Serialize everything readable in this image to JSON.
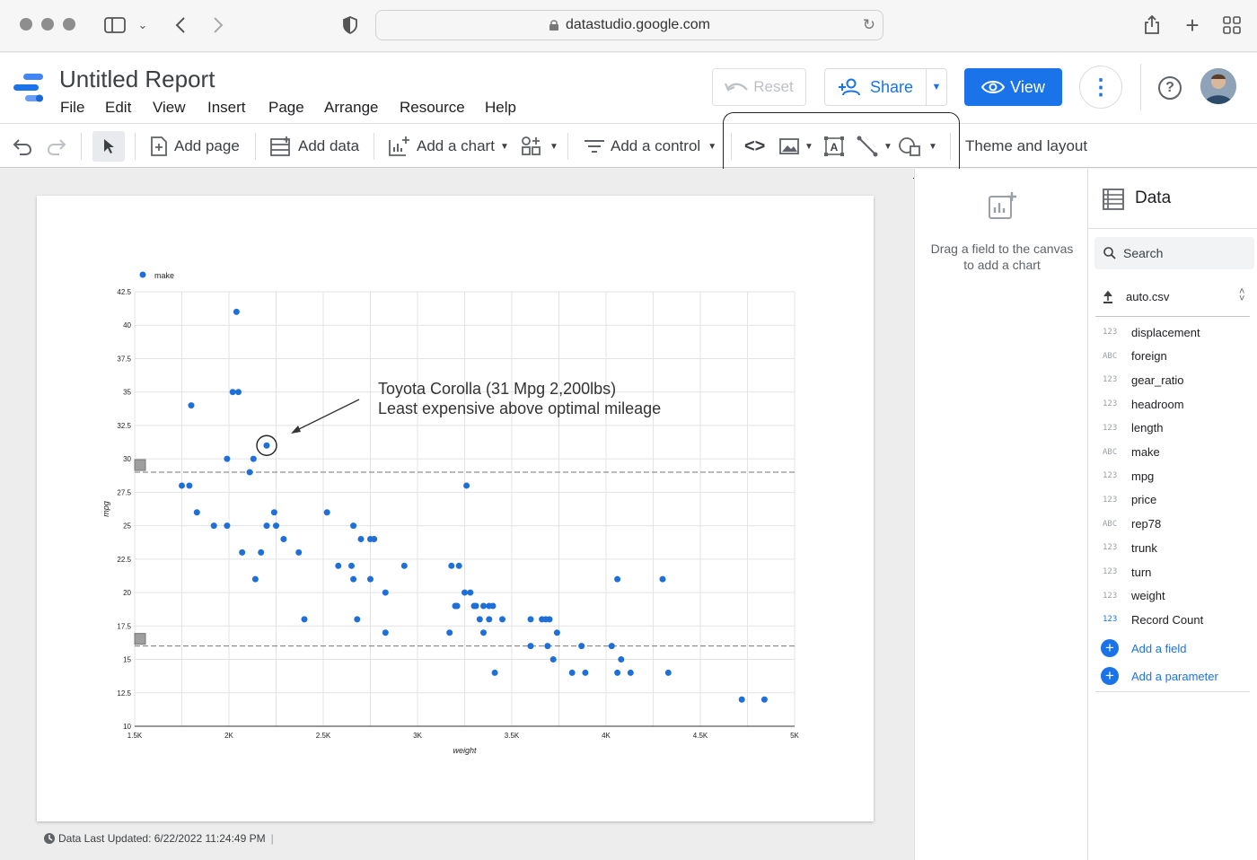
{
  "browser": {
    "url": "datastudio.google.com"
  },
  "header": {
    "title": "Untitled Report",
    "menus": [
      "File",
      "Edit",
      "View",
      "Insert",
      "Page",
      "Arrange",
      "Resource",
      "Help"
    ],
    "reset_label": "Reset",
    "share_label": "Share",
    "view_label": "View"
  },
  "toolbar": {
    "add_page": "Add page",
    "add_data": "Add data",
    "add_chart": "Add a chart",
    "add_control": "Add a control",
    "theme_layout": "Theme and layout"
  },
  "props_panel": {
    "hint": "Drag a field to the canvas to add a chart"
  },
  "data_panel": {
    "title": "Data",
    "search_placeholder": "Search",
    "datasource": "auto.csv",
    "fields": [
      {
        "type": "123",
        "name": "displacement"
      },
      {
        "type": "ABC",
        "name": "foreign"
      },
      {
        "type": "123",
        "name": "gear_ratio"
      },
      {
        "type": "123",
        "name": "headroom"
      },
      {
        "type": "123",
        "name": "length"
      },
      {
        "type": "ABC",
        "name": "make"
      },
      {
        "type": "123",
        "name": "mpg"
      },
      {
        "type": "123",
        "name": "price"
      },
      {
        "type": "ABC",
        "name": "rep78"
      },
      {
        "type": "123",
        "name": "trunk"
      },
      {
        "type": "123",
        "name": "turn"
      },
      {
        "type": "123",
        "name": "weight"
      },
      {
        "type": "123",
        "name": "Record Count"
      }
    ],
    "add_field": "Add a field",
    "add_parameter": "Add a parameter"
  },
  "footer": {
    "last_updated": "Data Last Updated: 6/22/2022 11:24:49 PM"
  },
  "colors": {
    "accent": "#1a73e8",
    "point": "#1f6fd8"
  },
  "chart_data": {
    "type": "scatter",
    "legend": [
      "make"
    ],
    "legend_position": "top-left",
    "xlabel": "weight",
    "ylabel": "mpg",
    "xlim": [
      1500,
      5000
    ],
    "ylim": [
      10,
      42.5
    ],
    "xticks": [
      "1.5K",
      "2K",
      "2.5K",
      "3K",
      "3.5K",
      "4K",
      "4.5K",
      "5K"
    ],
    "yticks": [
      "10",
      "12.5",
      "15",
      "17.5",
      "20",
      "22.5",
      "25",
      "27.5",
      "30",
      "32.5",
      "35",
      "37.5",
      "40",
      "42.5"
    ],
    "grid": true,
    "reference_lines": [
      29,
      16
    ],
    "annotation": [
      "Toyota Corolla (31 Mpg 2,200lbs)",
      "Least expensive above optimal mileage"
    ],
    "highlight": {
      "x": 2200,
      "y": 31
    },
    "points": [
      [
        2040,
        41
      ],
      [
        1800,
        34
      ],
      [
        2020,
        35
      ],
      [
        2050,
        35
      ],
      [
        1990,
        30
      ],
      [
        2130,
        30
      ],
      [
        2110,
        29
      ],
      [
        2200,
        31
      ],
      [
        1750,
        28
      ],
      [
        1790,
        28
      ],
      [
        1830,
        26
      ],
      [
        1920,
        25
      ],
      [
        1990,
        25
      ],
      [
        2070,
        23
      ],
      [
        2170,
        23
      ],
      [
        2140,
        21
      ],
      [
        2200,
        25
      ],
      [
        2250,
        25
      ],
      [
        2240,
        26
      ],
      [
        2290,
        24
      ],
      [
        2370,
        23
      ],
      [
        2400,
        18
      ],
      [
        2520,
        26
      ],
      [
        2580,
        22
      ],
      [
        2650,
        22
      ],
      [
        2660,
        21
      ],
      [
        2660,
        25
      ],
      [
        2700,
        24
      ],
      [
        2750,
        24
      ],
      [
        2770,
        24
      ],
      [
        2680,
        18
      ],
      [
        2750,
        21
      ],
      [
        2830,
        20
      ],
      [
        2830,
        17
      ],
      [
        2930,
        22
      ],
      [
        3180,
        22
      ],
      [
        3220,
        22
      ],
      [
        3170,
        17
      ],
      [
        3200,
        19
      ],
      [
        3210,
        19
      ],
      [
        3250,
        20
      ],
      [
        3280,
        20
      ],
      [
        3260,
        28
      ],
      [
        3300,
        19
      ],
      [
        3310,
        19
      ],
      [
        3330,
        18
      ],
      [
        3350,
        19
      ],
      [
        3380,
        19
      ],
      [
        3400,
        19
      ],
      [
        3410,
        14
      ],
      [
        3350,
        17
      ],
      [
        3380,
        18
      ],
      [
        3450,
        18
      ],
      [
        3600,
        18
      ],
      [
        3600,
        16
      ],
      [
        3660,
        18
      ],
      [
        3680,
        18
      ],
      [
        3700,
        18
      ],
      [
        3690,
        16
      ],
      [
        3720,
        15
      ],
      [
        3740,
        17
      ],
      [
        3820,
        14
      ],
      [
        3870,
        16
      ],
      [
        3890,
        14
      ],
      [
        4030,
        16
      ],
      [
        4060,
        21
      ],
      [
        4060,
        14
      ],
      [
        4080,
        15
      ],
      [
        4130,
        14
      ],
      [
        4300,
        21
      ],
      [
        4330,
        14
      ],
      [
        4720,
        12
      ],
      [
        4840,
        12
      ]
    ]
  }
}
